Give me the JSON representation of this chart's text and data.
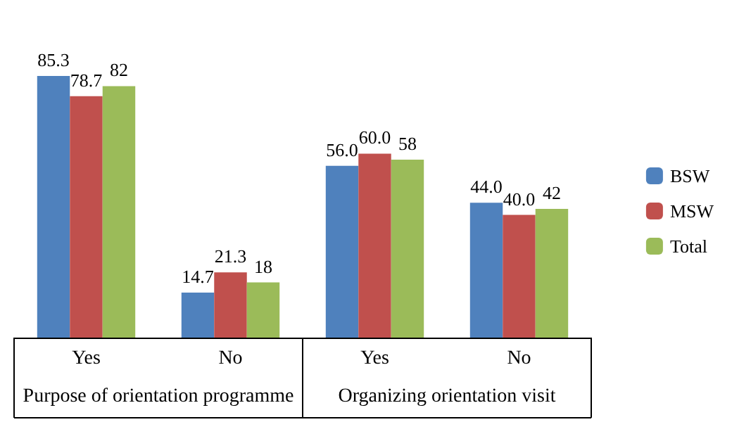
{
  "chart_data": {
    "type": "bar",
    "categories": [
      "Yes",
      "No",
      "Yes",
      "No"
    ],
    "series": [
      {
        "name": "BSW",
        "color": "#4f81bd",
        "values": [
          85.3,
          14.7,
          56.0,
          44.0
        ],
        "value_labels": [
          "85.3",
          "14.7",
          "56.0",
          "44.0"
        ]
      },
      {
        "name": "MSW",
        "color": "#c0504d",
        "values": [
          78.7,
          21.3,
          60.0,
          40.0
        ],
        "value_labels": [
          "78.7",
          "21.3",
          "60.0",
          "40.0"
        ]
      },
      {
        "name": "Total",
        "color": "#9bbb59",
        "values": [
          82,
          18,
          58,
          42
        ],
        "value_labels": [
          "82",
          "18",
          "58",
          "42"
        ]
      }
    ],
    "annotations": [
      "Purpose of orientation programme",
      "Organizing orientation visit"
    ],
    "legend": "right",
    "tick_labels": "x"
  }
}
